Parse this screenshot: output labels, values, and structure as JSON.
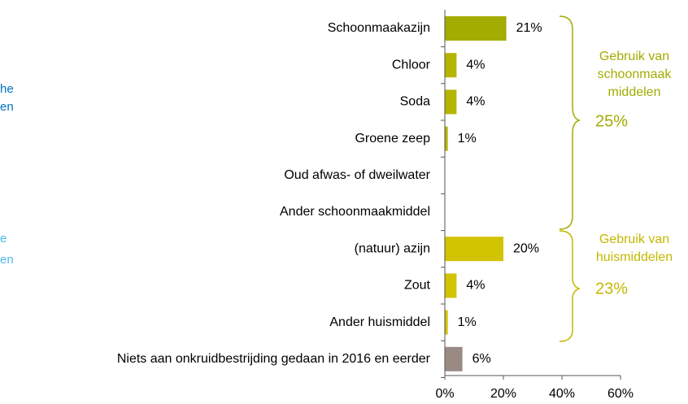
{
  "chart_data": {
    "type": "barh",
    "categories": [
      "Schoonmaakazijn",
      "Chloor",
      "Soda",
      "Groene zeep",
      "Oud afwas- of dweilwater",
      "Ander schoonmaakmiddel",
      "(natuur) azijn",
      "Zout",
      "Ander huismiddel",
      "Niets aan onkruidbestrijding gedaan in 2016 en eerder"
    ],
    "values": [
      21,
      4,
      4,
      1,
      null,
      null,
      20,
      4,
      1,
      6
    ],
    "value_labels": [
      "21%",
      "4%",
      "4%",
      "1%",
      null,
      null,
      "20%",
      "4%",
      "1%",
      "6%"
    ],
    "colors": [
      "#a3ac00",
      "#b5b500",
      "#b5b500",
      "#b5b500",
      "#b5b500",
      "#b5b500",
      "#d2c300",
      "#d2c300",
      "#d2c300",
      "#9b8a83"
    ],
    "xlim": [
      0,
      60
    ],
    "xticks": [
      {
        "value": 0,
        "label": "0%"
      },
      {
        "value": 20,
        "label": "20%"
      },
      {
        "value": 40,
        "label": "40%"
      },
      {
        "value": 60,
        "label": "60%"
      }
    ],
    "annotations": [
      {
        "lines": [
          "Gebruik van",
          "schoonmaak",
          "middelen"
        ],
        "total": "25%",
        "color": "#a3ac00"
      },
      {
        "lines": [
          "Gebruik van",
          "huismiddelen"
        ],
        "total": "23%",
        "color": "#c4b800"
      }
    ],
    "clipped_texts": [
      {
        "text": "he",
        "color": "#0070c0"
      },
      {
        "text": "en",
        "color": "#0070c0"
      },
      {
        "text": "e",
        "color": "#4fb8e8"
      },
      {
        "text": "en",
        "color": "#4fb8e8"
      }
    ]
  }
}
